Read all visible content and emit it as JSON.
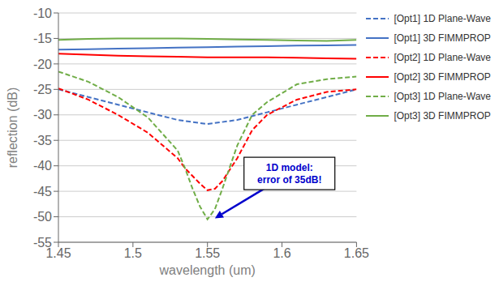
{
  "chart_data": {
    "type": "line",
    "xlabel": "wavelength (um)",
    "ylabel": "reflection (dB)",
    "xlim": [
      1.45,
      1.65
    ],
    "xticks": [
      1.45,
      1.5,
      1.55,
      1.6,
      1.65
    ],
    "ylim": [
      -55,
      -10
    ],
    "yticks": [
      -55,
      -50,
      -45,
      -40,
      -35,
      -30,
      -25,
      -20,
      -15,
      -10
    ],
    "grid": "y",
    "legend": "right",
    "annotation": {
      "text": "1D model:\nerror of 35dB!",
      "xy": [
        1.555,
        -50.3
      ],
      "xytext": [
        1.605,
        -41.5
      ],
      "color": "#0000CC"
    },
    "series": [
      {
        "name": "[Opt1] 1D Plane-Wave",
        "color": "#4472C4",
        "line_style": "dashed",
        "x": [
          1.45,
          1.47,
          1.49,
          1.51,
          1.53,
          1.55,
          1.57,
          1.59,
          1.61,
          1.63,
          1.65
        ],
        "values": [
          -25.0,
          -26.5,
          -28.0,
          -29.5,
          -31.0,
          -31.8,
          -31.0,
          -29.5,
          -28.0,
          -26.5,
          -25.0
        ]
      },
      {
        "name": "[Opt1] 3D FIMMPROP",
        "color": "#4472C4",
        "line_style": "solid",
        "x": [
          1.45,
          1.47,
          1.49,
          1.51,
          1.53,
          1.55,
          1.57,
          1.59,
          1.61,
          1.63,
          1.65
        ],
        "values": [
          -17.2,
          -17.1,
          -17.0,
          -16.9,
          -16.8,
          -16.7,
          -16.6,
          -16.5,
          -16.4,
          -16.35,
          -16.3
        ]
      },
      {
        "name": "[Opt2] 1D Plane-Wave",
        "color": "#FF0000",
        "line_style": "dashed",
        "x": [
          1.45,
          1.47,
          1.49,
          1.51,
          1.53,
          1.535,
          1.54,
          1.545,
          1.55,
          1.555,
          1.56,
          1.57,
          1.58,
          1.59,
          1.61,
          1.63,
          1.65
        ],
        "values": [
          -24.8,
          -27.0,
          -30.0,
          -33.5,
          -38.5,
          -40.5,
          -42.0,
          -43.5,
          -44.8,
          -44.5,
          -43.0,
          -38.5,
          -33.0,
          -30.0,
          -27.0,
          -25.5,
          -25.0
        ]
      },
      {
        "name": "[Opt2] 3D FIMMPROP",
        "color": "#FF0000",
        "line_style": "solid",
        "x": [
          1.45,
          1.47,
          1.49,
          1.51,
          1.53,
          1.55,
          1.57,
          1.59,
          1.61,
          1.63,
          1.65
        ],
        "values": [
          -18.0,
          -18.2,
          -18.4,
          -18.5,
          -18.6,
          -18.7,
          -18.7,
          -18.7,
          -18.8,
          -18.9,
          -19.0
        ]
      },
      {
        "name": "[Opt3] 1D Plane-Wave",
        "color": "#70AD47",
        "line_style": "dashed",
        "x": [
          1.45,
          1.47,
          1.49,
          1.51,
          1.53,
          1.535,
          1.54,
          1.545,
          1.55,
          1.555,
          1.56,
          1.57,
          1.58,
          1.59,
          1.61,
          1.63,
          1.65
        ],
        "values": [
          -21.5,
          -23.5,
          -26.5,
          -30.5,
          -37.0,
          -40.5,
          -44.5,
          -48.0,
          -50.5,
          -48.5,
          -44.5,
          -36.0,
          -30.0,
          -27.5,
          -24.0,
          -23.0,
          -22.5
        ]
      },
      {
        "name": "[Opt3] 3D FIMMPROP",
        "color": "#70AD47",
        "line_style": "solid",
        "x": [
          1.45,
          1.47,
          1.49,
          1.51,
          1.53,
          1.55,
          1.57,
          1.59,
          1.61,
          1.63,
          1.65
        ],
        "values": [
          -15.3,
          -15.1,
          -15.0,
          -15.0,
          -15.0,
          -15.1,
          -15.2,
          -15.3,
          -15.4,
          -15.5,
          -15.3
        ]
      }
    ]
  }
}
